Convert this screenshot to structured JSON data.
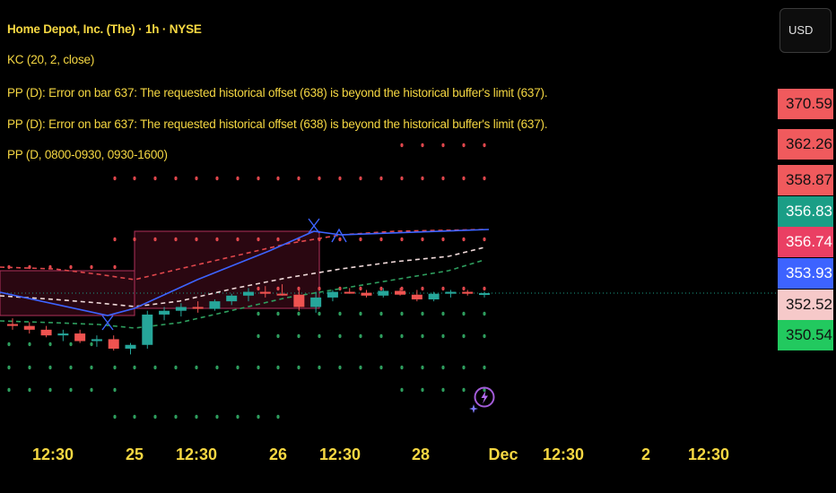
{
  "legend": {
    "symbol_line": "Home Depot, Inc. (The) · 1h · NYSE",
    "kc_line": "KC (20, 2, close)",
    "pp_error_1": "PP (D): Error on bar 637: The requested historical offset (638) is beyond the historical buffer's limit (637).",
    "pp_error_2": "PP (D): Error on bar 637: The requested historical offset (638) is beyond the historical buffer's limit (637).",
    "pp_line": "PP (D, 0800-0930, 0930-1600)"
  },
  "currency_button": {
    "label": "USD"
  },
  "icons": {
    "alert": "lightning-alert-icon"
  },
  "colors": {
    "up": "#26a69a",
    "down": "#ef5350",
    "text": "#f5d742",
    "pivot_red": "#e0474c",
    "pivot_green": "#2e9e5e",
    "path_blue": "#3d63ff"
  },
  "chart_data": {
    "type": "candlestick",
    "x_tick_labels": [
      "12:30",
      "25",
      "12:30",
      "26",
      "12:30",
      "28",
      "Dec",
      "12:30",
      "2",
      "12:30"
    ],
    "ylim": [
      349.5,
      372.3
    ],
    "grid": false,
    "last_price_line": 356.83,
    "candles": [
      {
        "o": 355.2,
        "h": 355.5,
        "l": 354.9,
        "c": 355.1
      },
      {
        "o": 355.1,
        "h": 355.3,
        "l": 354.7,
        "c": 354.9
      },
      {
        "o": 354.9,
        "h": 355.1,
        "l": 354.5,
        "c": 354.6
      },
      {
        "o": 354.6,
        "h": 354.9,
        "l": 354.3,
        "c": 354.7
      },
      {
        "o": 354.7,
        "h": 354.9,
        "l": 354.2,
        "c": 354.3
      },
      {
        "o": 354.3,
        "h": 354.6,
        "l": 354.0,
        "c": 354.4
      },
      {
        "o": 354.4,
        "h": 354.6,
        "l": 353.8,
        "c": 353.9
      },
      {
        "o": 353.9,
        "h": 354.2,
        "l": 353.6,
        "c": 354.1
      },
      {
        "o": 354.1,
        "h": 355.9,
        "l": 353.9,
        "c": 355.7
      },
      {
        "o": 355.7,
        "h": 356.1,
        "l": 355.4,
        "c": 355.9
      },
      {
        "o": 355.9,
        "h": 356.3,
        "l": 355.6,
        "c": 356.1
      },
      {
        "o": 356.1,
        "h": 356.4,
        "l": 355.8,
        "c": 356.0
      },
      {
        "o": 356.0,
        "h": 356.5,
        "l": 355.9,
        "c": 356.4
      },
      {
        "o": 356.4,
        "h": 356.8,
        "l": 356.2,
        "c": 356.7
      },
      {
        "o": 356.7,
        "h": 357.1,
        "l": 356.4,
        "c": 356.9
      },
      {
        "o": 356.9,
        "h": 357.2,
        "l": 356.6,
        "c": 356.8
      },
      {
        "o": 356.8,
        "h": 357.3,
        "l": 356.7,
        "c": 356.75
      },
      {
        "o": 356.75,
        "h": 357.0,
        "l": 355.9,
        "c": 356.1
      },
      {
        "o": 356.1,
        "h": 356.9,
        "l": 355.8,
        "c": 356.6
      },
      {
        "o": 356.6,
        "h": 357.0,
        "l": 356.4,
        "c": 356.9
      },
      {
        "o": 356.9,
        "h": 357.1,
        "l": 356.8,
        "c": 356.85
      },
      {
        "o": 356.85,
        "h": 357.0,
        "l": 356.6,
        "c": 356.7
      },
      {
        "o": 356.7,
        "h": 357.1,
        "l": 356.6,
        "c": 356.95
      },
      {
        "o": 356.95,
        "h": 357.1,
        "l": 356.7,
        "c": 356.75
      },
      {
        "o": 356.75,
        "h": 357.0,
        "l": 356.4,
        "c": 356.5
      },
      {
        "o": 356.5,
        "h": 356.9,
        "l": 356.4,
        "c": 356.8
      },
      {
        "o": 356.8,
        "h": 357.0,
        "l": 356.6,
        "c": 356.9
      },
      {
        "o": 356.9,
        "h": 357.0,
        "l": 356.7,
        "c": 356.8
      },
      {
        "o": 356.8,
        "h": 356.9,
        "l": 356.6,
        "c": 356.83
      }
    ],
    "price_labels": [
      {
        "value": "370.59",
        "bg": "#f05a5d",
        "fg": "#111111"
      },
      {
        "value": "362.26",
        "bg": "#f05a5d",
        "fg": "#111111"
      },
      {
        "value": "358.87",
        "bg": "#f05a5d",
        "fg": "#111111"
      },
      {
        "value": "356.83",
        "bg": "#1a9e86",
        "fg": "#ffffff"
      },
      {
        "value": "356.74",
        "bg": "#ea3f63",
        "fg": "#ffffff"
      },
      {
        "value": "353.93",
        "bg": "#3d63ff",
        "fg": "#ffffff"
      },
      {
        "value": "352.52",
        "bg": "#f6c9c9",
        "fg": "#111111"
      },
      {
        "value": "350.54",
        "bg": "#22c95f",
        "fg": "#111111"
      }
    ]
  }
}
